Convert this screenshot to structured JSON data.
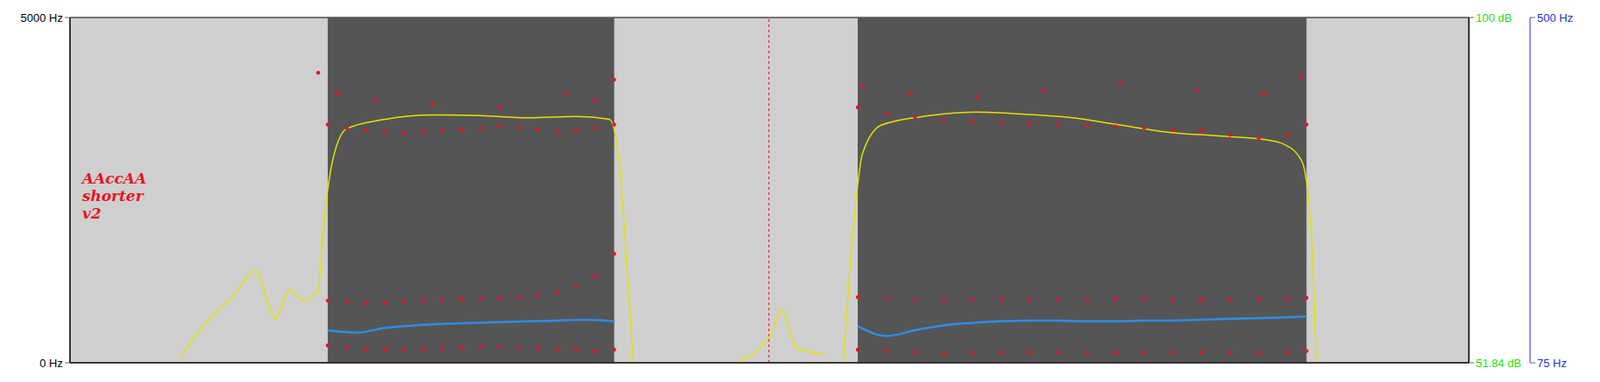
{
  "chart_data": {
    "type": "spectrogram",
    "title": "AAccAA shorter v2",
    "tick_labels": "y",
    "xlim": [
      0,
      1.465
    ],
    "ylim": [
      0,
      5000
    ],
    "yticks": [
      {
        "value": 0,
        "label": "0 Hz"
      },
      {
        "value": 5000,
        "label": "5000 Hz"
      }
    ],
    "y2lim": [
      75,
      500
    ],
    "y2ticks": [
      {
        "value": 75,
        "label": "75 Hz"
      },
      {
        "value": 500,
        "label": "500 Hz"
      }
    ],
    "y3lim": [
      51.84,
      100
    ],
    "y3ticks": [
      {
        "value": 51.84,
        "label": "51.84 dB"
      },
      {
        "value": 100,
        "label": "100 dB"
      }
    ],
    "voiced_intervals": [
      [
        0.27,
        0.57
      ],
      [
        0.825,
        1.295
      ]
    ],
    "cursor_x": 0.732,
    "series": [
      {
        "type": "scatter",
        "color": "#e8141c",
        "marker": "dot",
        "x": [
          0.27,
          0.29,
          0.31,
          0.33,
          0.35,
          0.37,
          0.39,
          0.41,
          0.43,
          0.45,
          0.47,
          0.49,
          0.51,
          0.53,
          0.55,
          0.57,
          0.825,
          0.855,
          0.885,
          0.915,
          0.945,
          0.975,
          1.005,
          1.035,
          1.065,
          1.095,
          1.125,
          1.155,
          1.185,
          1.215,
          1.245,
          1.275,
          1.295
        ],
        "values": [
          250,
          220,
          200,
          190,
          180,
          200,
          210,
          220,
          230,
          230,
          220,
          210,
          200,
          190,
          170,
          190,
          190,
          170,
          150,
          140,
          140,
          145,
          150,
          150,
          145,
          140,
          145,
          150,
          150,
          145,
          140,
          150,
          170
        ]
      },
      {
        "type": "scatter",
        "color": "#e8141c",
        "marker": "dot",
        "x": [
          0.27,
          0.29,
          0.31,
          0.33,
          0.35,
          0.37,
          0.39,
          0.41,
          0.43,
          0.45,
          0.47,
          0.49,
          0.51,
          0.53,
          0.55,
          0.57,
          0.825,
          0.855,
          0.885,
          0.915,
          0.945,
          0.975,
          1.005,
          1.035,
          1.065,
          1.095,
          1.125,
          1.155,
          1.185,
          1.215,
          1.245,
          1.275,
          1.295
        ],
        "values": [
          900,
          880,
          860,
          870,
          880,
          900,
          910,
          920,
          930,
          940,
          950,
          980,
          1020,
          1100,
          1250,
          1580,
          950,
          930,
          910,
          910,
          915,
          920,
          915,
          910,
          915,
          920,
          920,
          915,
          910,
          915,
          920,
          925,
          940
        ]
      },
      {
        "type": "scatter",
        "color": "#e8141c",
        "marker": "dot",
        "x": [
          0.27,
          0.29,
          0.31,
          0.33,
          0.35,
          0.37,
          0.39,
          0.41,
          0.43,
          0.45,
          0.47,
          0.49,
          0.51,
          0.53,
          0.55,
          0.57,
          0.825,
          0.855,
          0.885,
          0.915,
          0.945,
          0.975,
          1.005,
          1.035,
          1.065,
          1.095,
          1.125,
          1.155,
          1.185,
          1.215,
          1.245,
          1.275,
          1.295
        ],
        "values": [
          3450,
          3400,
          3380,
          3350,
          3330,
          3350,
          3360,
          3380,
          3400,
          3420,
          3400,
          3380,
          3350,
          3370,
          3400,
          3450,
          3700,
          3600,
          3550,
          3520,
          3500,
          3480,
          3460,
          3450,
          3430,
          3420,
          3400,
          3380,
          3360,
          3300,
          3250,
          3300,
          3450
        ]
      },
      {
        "type": "scatter",
        "color": "#e8141c",
        "marker": "dot",
        "x": [
          0.26,
          0.28,
          0.32,
          0.38,
          0.45,
          0.52,
          0.55,
          0.57,
          0.83,
          0.88,
          0.95,
          1.02,
          1.1,
          1.18,
          1.25,
          1.29
        ],
        "values": [
          4200,
          3900,
          3800,
          3750,
          3700,
          3900,
          3800,
          4100,
          4000,
          3900,
          3850,
          3950,
          4050,
          3950,
          3900,
          4150
        ]
      },
      {
        "type": "line",
        "color": "#2d8ce6",
        "axis": "y2",
        "x": [
          0.27,
          0.3,
          0.33,
          0.36,
          0.39,
          0.42,
          0.45,
          0.48,
          0.51,
          0.54,
          0.57,
          0.7,
          0.825,
          0.855,
          0.885,
          0.915,
          0.945,
          0.975,
          1.005,
          1.035,
          1.065,
          1.095,
          1.125,
          1.155,
          1.185,
          1.215,
          1.245,
          1.275,
          1.295
        ],
        "values": [
          115,
          112,
          118,
          121,
          123,
          124,
          125,
          126,
          127,
          128,
          126,
          null,
          120,
          108,
          115,
          121,
          124,
          126,
          127,
          127,
          126,
          126,
          127,
          127,
          128,
          129,
          130,
          131,
          132
        ]
      },
      {
        "type": "line",
        "color": "#e8e000",
        "axis": "y3",
        "x": [
          0.115,
          0.14,
          0.17,
          0.195,
          0.205,
          0.215,
          0.23,
          0.245,
          0.26,
          0.265,
          0.275,
          0.29,
          0.33,
          0.38,
          0.43,
          0.48,
          0.53,
          0.565,
          0.575,
          0.585,
          0.59,
          0.65,
          0.7,
          0.735,
          0.745,
          0.76,
          0.79,
          0.8,
          0.81,
          0.82,
          0.83,
          0.85,
          0.9,
          0.95,
          1.0,
          1.05,
          1.1,
          1.15,
          1.2,
          1.25,
          1.27,
          1.29,
          1.3,
          1.305
        ],
        "values": [
          52.5,
          57,
          61,
          64.7,
          61,
          58,
          62,
          60.5,
          62,
          70,
          80,
          84.5,
          85.8,
          86.4,
          86.3,
          86.0,
          86.2,
          85.8,
          80,
          62,
          52,
          null,
          52,
          56,
          59.3,
          54,
          53,
          null,
          52,
          70,
          81,
          85,
          86.3,
          86.8,
          86.5,
          86.0,
          85.0,
          84.0,
          83.5,
          83.0,
          82.4,
          80,
          70,
          52
        ]
      }
    ]
  }
}
